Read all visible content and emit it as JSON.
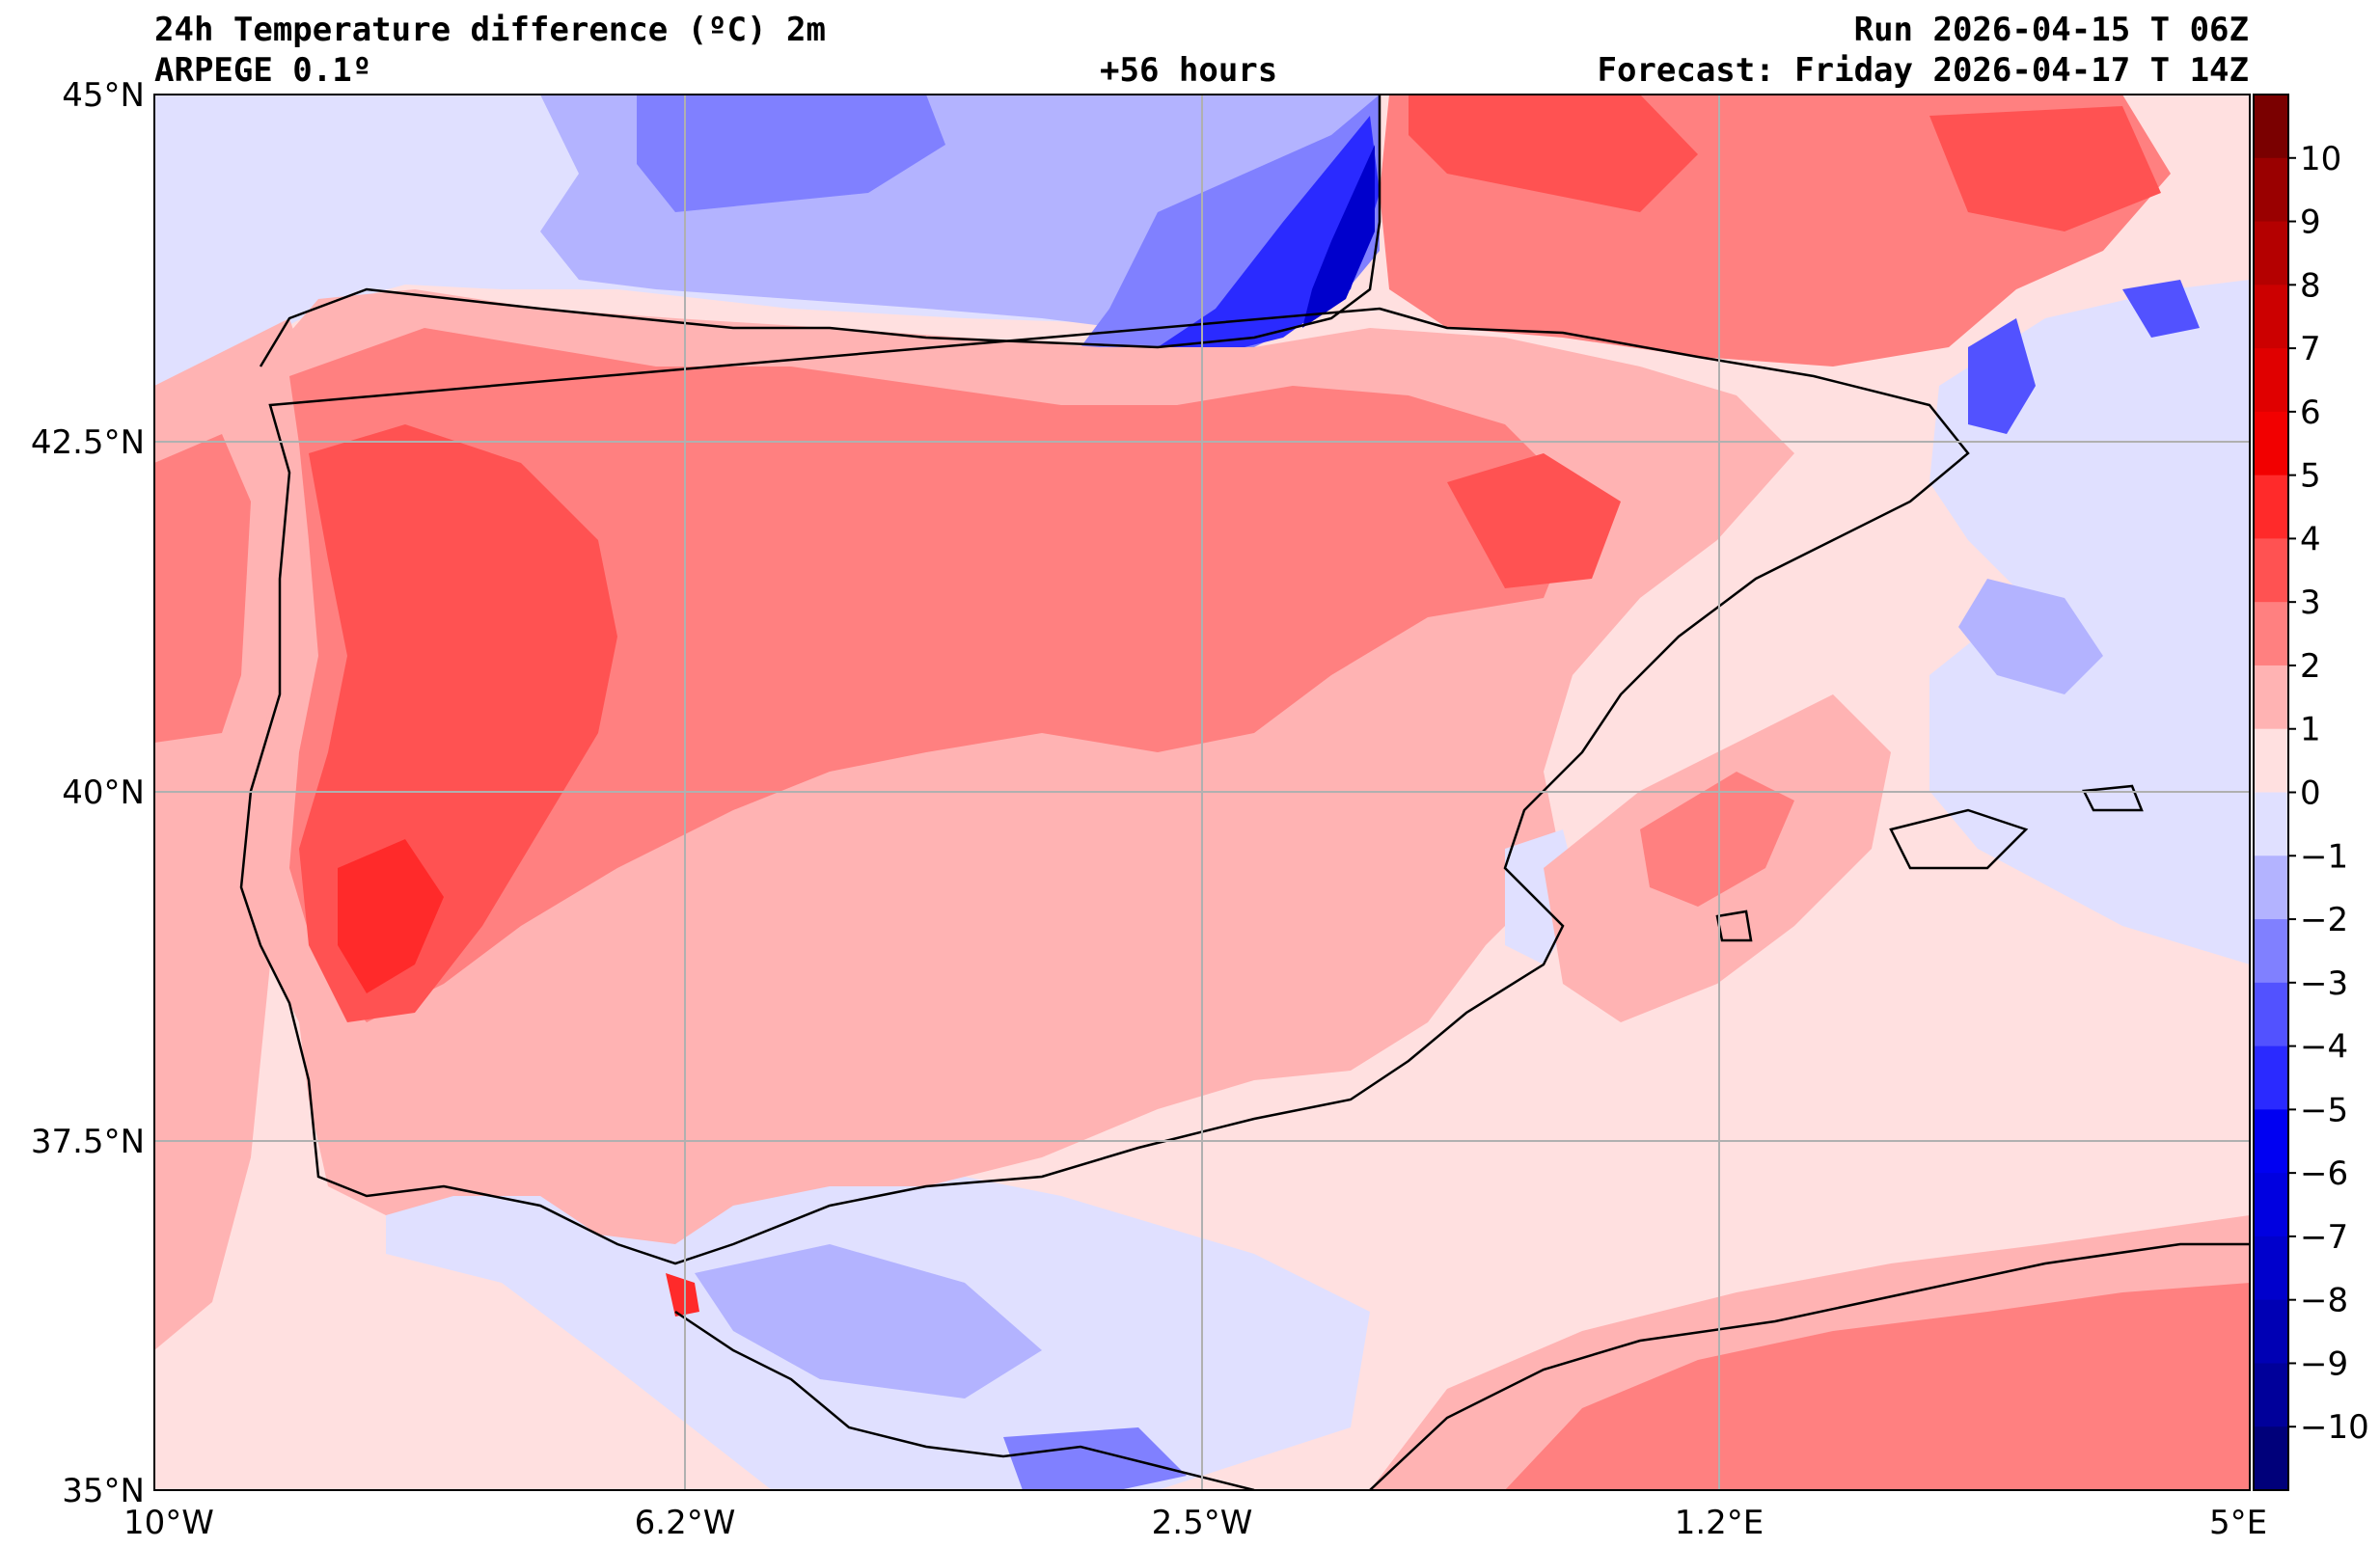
{
  "header": {
    "title": "24h Temperature difference (ºC) 2m",
    "model": "ARPEGE 0.1º",
    "lead_time": "+56 hours",
    "run": "Run 2026-04-15 T 06Z",
    "forecast": "Forecast: Friday 2026-04-17 T 14Z"
  },
  "axes": {
    "lat_ticks": [
      "45°N",
      "42.5°N",
      "40°N",
      "37.5°N",
      "35°N"
    ],
    "lon_ticks": [
      "10°W",
      "6.2°W",
      "2.5°W",
      "1.2°E",
      "5°E"
    ]
  },
  "colorbar": {
    "labels": [
      "10",
      "9",
      "8",
      "7",
      "6",
      "5",
      "4",
      "3",
      "2",
      "1",
      "0",
      "−1",
      "−2",
      "−3",
      "−4",
      "−5",
      "−6",
      "−7",
      "−8",
      "−9",
      "−10"
    ],
    "colors": [
      "#7a0000",
      "#9a0000",
      "#b40000",
      "#cc0000",
      "#e00000",
      "#f20000",
      "#ff2a2a",
      "#ff5252",
      "#ff8080",
      "#ffb3b3",
      "#ffe0e0",
      "#e0e0ff",
      "#b3b3ff",
      "#8080ff",
      "#5252ff",
      "#2a2aff",
      "#0000f2",
      "#0000e0",
      "#0000cc",
      "#0000b4",
      "#00009a",
      "#00007a"
    ]
  }
}
